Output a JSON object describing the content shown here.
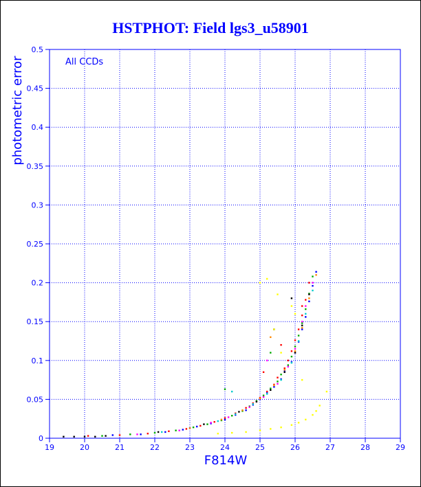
{
  "chart_data": {
    "type": "scatter",
    "title": "HSTPHOT: Field lgs3_u58901",
    "xlabel": "F814W",
    "ylabel": "photometric error",
    "annotation": "All CCDs",
    "xlim": [
      19,
      29
    ],
    "ylim": [
      0,
      0.5
    ],
    "xticks": [
      19,
      20,
      21,
      22,
      23,
      24,
      25,
      26,
      27,
      28,
      29
    ],
    "yticks": [
      0,
      0.05,
      0.1,
      0.15,
      0.2,
      0.25,
      0.3,
      0.35,
      0.4,
      0.45,
      0.5
    ],
    "ytick_labels": [
      "0",
      "0.05",
      "0.1",
      "0.15",
      "0.2",
      "0.25",
      "0.3",
      "0.35",
      "0.4",
      "0.45",
      "0.5"
    ],
    "grid": true,
    "colors": {
      "title": "#0000ff",
      "axis": "#0000ff",
      "grid": "#0000ff",
      "text": "#0000ff",
      "frame": "#000000"
    },
    "series": [
      {
        "color": "#ff0000",
        "x": [
          20.1,
          21.0,
          21.8,
          22.4,
          22.9,
          23.3,
          23.7,
          24.0,
          24.3,
          24.6,
          24.8,
          25.0,
          25.2,
          25.4,
          25.5,
          25.7,
          25.8,
          25.9,
          26.0,
          26.1,
          26.2,
          26.3,
          26.4,
          25.1,
          25.6,
          26.2
        ],
        "y": [
          0.003,
          0.004,
          0.006,
          0.009,
          0.012,
          0.016,
          0.021,
          0.026,
          0.032,
          0.039,
          0.045,
          0.052,
          0.06,
          0.069,
          0.078,
          0.09,
          0.1,
          0.112,
          0.126,
          0.14,
          0.158,
          0.178,
          0.2,
          0.085,
          0.12,
          0.17
        ]
      },
      {
        "color": "#00aa00",
        "x": [
          20.5,
          21.3,
          22.0,
          22.6,
          23.1,
          23.5,
          23.9,
          24.2,
          24.5,
          24.7,
          24.9,
          25.1,
          25.3,
          25.5,
          25.6,
          25.8,
          25.9,
          26.0,
          26.1,
          26.2,
          26.3,
          26.4,
          26.5,
          24.0,
          25.3
        ],
        "y": [
          0.003,
          0.005,
          0.007,
          0.01,
          0.014,
          0.018,
          0.023,
          0.029,
          0.035,
          0.041,
          0.048,
          0.055,
          0.064,
          0.073,
          0.082,
          0.094,
          0.105,
          0.118,
          0.132,
          0.148,
          0.166,
          0.186,
          0.208,
          0.063,
          0.11
        ]
      },
      {
        "color": "#0000ff",
        "x": [
          20.8,
          21.6,
          22.3,
          22.8,
          23.2,
          23.6,
          24.0,
          24.3,
          24.6,
          24.8,
          25.0,
          25.2,
          25.4,
          25.6,
          25.7,
          25.9,
          26.0,
          26.1,
          26.2,
          26.3,
          26.4,
          26.5,
          26.6
        ],
        "y": [
          0.004,
          0.005,
          0.008,
          0.011,
          0.015,
          0.019,
          0.024,
          0.03,
          0.036,
          0.043,
          0.05,
          0.058,
          0.066,
          0.076,
          0.086,
          0.098,
          0.11,
          0.124,
          0.14,
          0.156,
          0.176,
          0.196,
          0.214
        ]
      },
      {
        "color": "#000000",
        "x": [
          19.4,
          19.7,
          20.0,
          20.3,
          20.6,
          22.1,
          23.4,
          24.4,
          24.9,
          25.3,
          25.7,
          26.0,
          26.2,
          26.4,
          25.4,
          25.9
        ],
        "y": [
          0.002,
          0.002,
          0.002,
          0.002,
          0.003,
          0.008,
          0.018,
          0.034,
          0.047,
          0.062,
          0.085,
          0.11,
          0.145,
          0.185,
          0.14,
          0.18
        ]
      },
      {
        "color": "#ff00ff",
        "x": [
          21.5,
          22.7,
          23.6,
          24.1,
          24.7,
          25.1,
          25.5,
          25.8,
          26.0,
          26.2,
          26.3,
          26.5,
          25.2
        ],
        "y": [
          0.005,
          0.01,
          0.02,
          0.027,
          0.04,
          0.053,
          0.07,
          0.092,
          0.115,
          0.15,
          0.17,
          0.2,
          0.1
        ]
      },
      {
        "color": "#00cccc",
        "x": [
          22.2,
          23.0,
          23.8,
          24.3,
          24.8,
          25.2,
          25.6,
          25.9,
          26.1,
          26.3,
          26.5,
          24.2
        ],
        "y": [
          0.008,
          0.013,
          0.022,
          0.031,
          0.044,
          0.057,
          0.075,
          0.097,
          0.125,
          0.16,
          0.19,
          0.06
        ]
      },
      {
        "color": "#ff8800",
        "x": [
          23.0,
          23.9,
          24.5,
          25.0,
          25.4,
          25.7,
          26.0,
          26.2,
          26.4,
          26.6,
          25.3
        ],
        "y": [
          0.013,
          0.024,
          0.036,
          0.051,
          0.068,
          0.088,
          0.112,
          0.142,
          0.18,
          0.21,
          0.13
        ]
      },
      {
        "color": "#ffff00",
        "x": [
          23.8,
          24.2,
          24.6,
          25.0,
          25.3,
          25.6,
          25.9,
          26.1,
          26.3,
          26.5,
          26.6,
          26.7,
          25.0,
          25.4,
          25.6,
          26.2,
          26.9,
          26.0,
          25.9,
          25.5,
          25.2
        ],
        "y": [
          0.006,
          0.007,
          0.008,
          0.01,
          0.012,
          0.014,
          0.017,
          0.02,
          0.024,
          0.03,
          0.035,
          0.042,
          0.2,
          0.14,
          0.11,
          0.075,
          0.06,
          0.16,
          0.17,
          0.185,
          0.205
        ]
      }
    ]
  }
}
